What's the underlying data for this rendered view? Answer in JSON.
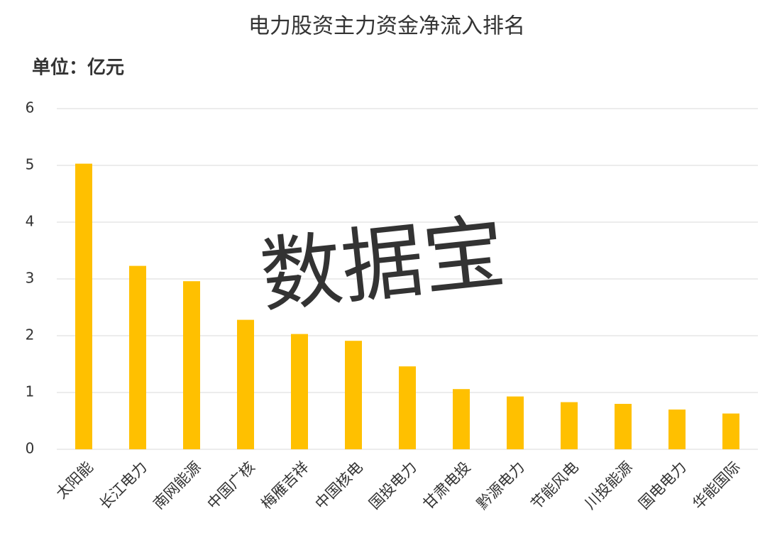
{
  "chart_data": {
    "type": "bar",
    "title": "电力股资主力资金净流入排名",
    "unit_label": "单位：亿元",
    "watermark": "数据宝",
    "categories": [
      "太阳能",
      "长江电力",
      "南网能源",
      "中国广核",
      "梅雁吉祥",
      "中国核电",
      "国投电力",
      "甘肃电投",
      "黔源电力",
      "节能风电",
      "川投能源",
      "国电电力",
      "华能国际"
    ],
    "values": [
      5.03,
      3.23,
      2.96,
      2.28,
      2.03,
      1.91,
      1.46,
      1.06,
      0.93,
      0.83,
      0.8,
      0.7,
      0.63
    ],
    "color": "#ffc000",
    "ylim": [
      0,
      6
    ],
    "yticks": [
      0,
      1,
      2,
      3,
      4,
      5,
      6
    ],
    "grid": true
  }
}
